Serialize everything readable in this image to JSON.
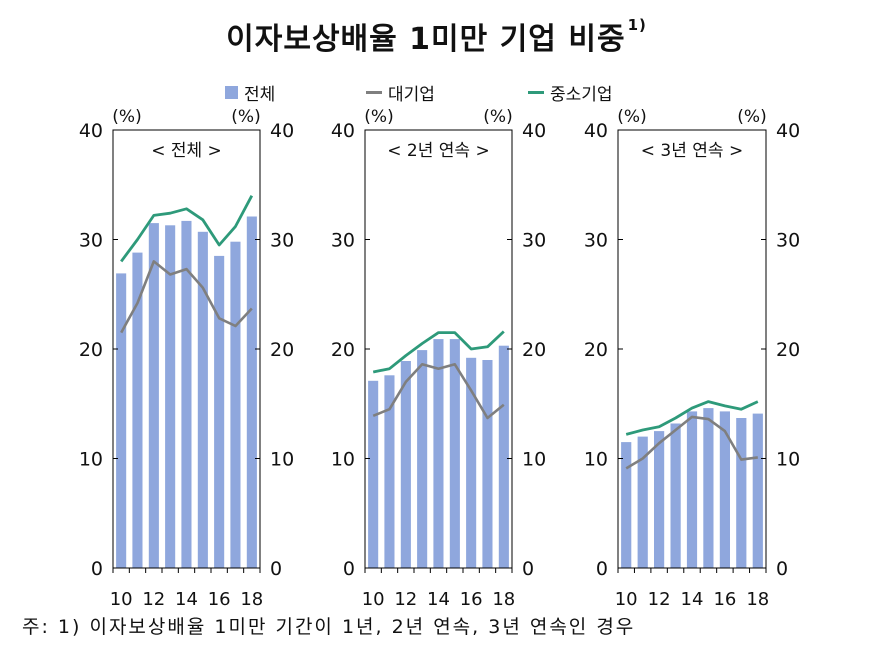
{
  "title": "이자보상배율 1미만 기업 비중",
  "title_footnote": "1)",
  "legend": {
    "total": "전체",
    "large": "대기업",
    "sme": "중소기업"
  },
  "colors": {
    "bar": "#8fa7dd",
    "large": "#7f7f7f",
    "sme": "#2e9a7a"
  },
  "note": "주: 1) 이자보상배율 1미만 기간이 1년, 2년 연속, 3년 연속인 경우",
  "chart_data": [
    {
      "type": "bar",
      "title": "< 전체 >",
      "left_unit": "(%)",
      "right_unit": "(%)",
      "ylim": [
        0,
        40
      ],
      "yticks": [
        "0",
        "10",
        "20",
        "30",
        "40"
      ],
      "x": [
        10,
        11,
        12,
        13,
        14,
        15,
        16,
        17,
        18
      ],
      "xticks": [
        "10",
        "12",
        "14",
        "16",
        "18"
      ],
      "series": [
        {
          "name": "전체",
          "kind": "bar",
          "values": [
            26.9,
            28.8,
            31.5,
            31.3,
            31.7,
            30.7,
            28.5,
            29.8,
            32.1
          ]
        },
        {
          "name": "대기업",
          "kind": "line",
          "values": [
            21.5,
            24.2,
            28.0,
            26.8,
            27.3,
            25.6,
            22.8,
            22.1,
            23.7
          ]
        },
        {
          "name": "중소기업",
          "kind": "line",
          "values": [
            28.0,
            30.0,
            32.2,
            32.4,
            32.8,
            31.8,
            29.5,
            31.2,
            34.0
          ]
        }
      ]
    },
    {
      "type": "bar",
      "title": "< 2년 연속 >",
      "left_unit": "(%)",
      "right_unit": "(%)",
      "ylim": [
        0,
        40
      ],
      "yticks": [
        "0",
        "10",
        "20",
        "30",
        "40"
      ],
      "x": [
        10,
        11,
        12,
        13,
        14,
        15,
        16,
        17,
        18
      ],
      "xticks": [
        "10",
        "12",
        "14",
        "16",
        "18"
      ],
      "series": [
        {
          "name": "전체",
          "kind": "bar",
          "values": [
            17.1,
            17.6,
            18.9,
            19.9,
            20.9,
            20.9,
            19.2,
            19.0,
            20.3
          ]
        },
        {
          "name": "대기업",
          "kind": "line",
          "values": [
            13.9,
            14.5,
            17.0,
            18.6,
            18.2,
            18.6,
            16.2,
            13.7,
            14.9
          ]
        },
        {
          "name": "중소기업",
          "kind": "line",
          "values": [
            17.9,
            18.2,
            19.4,
            20.5,
            21.5,
            21.5,
            20.0,
            20.2,
            21.6
          ]
        }
      ]
    },
    {
      "type": "bar",
      "title": "< 3년 연속 >",
      "left_unit": "(%)",
      "right_unit": "(%)",
      "ylim": [
        0,
        40
      ],
      "yticks": [
        "0",
        "10",
        "20",
        "30",
        "40"
      ],
      "x": [
        10,
        11,
        12,
        13,
        14,
        15,
        16,
        17,
        18
      ],
      "xticks": [
        "10",
        "12",
        "14",
        "16",
        "18"
      ],
      "series": [
        {
          "name": "전체",
          "kind": "bar",
          "values": [
            11.5,
            12.0,
            12.5,
            13.2,
            14.3,
            14.6,
            14.3,
            13.7,
            14.1
          ]
        },
        {
          "name": "대기업",
          "kind": "line",
          "values": [
            9.1,
            10.0,
            11.4,
            12.6,
            13.8,
            13.6,
            12.5,
            9.9,
            10.1
          ]
        },
        {
          "name": "중소기업",
          "kind": "line",
          "values": [
            12.2,
            12.6,
            12.9,
            13.7,
            14.6,
            15.2,
            14.8,
            14.5,
            15.2
          ]
        }
      ]
    }
  ]
}
